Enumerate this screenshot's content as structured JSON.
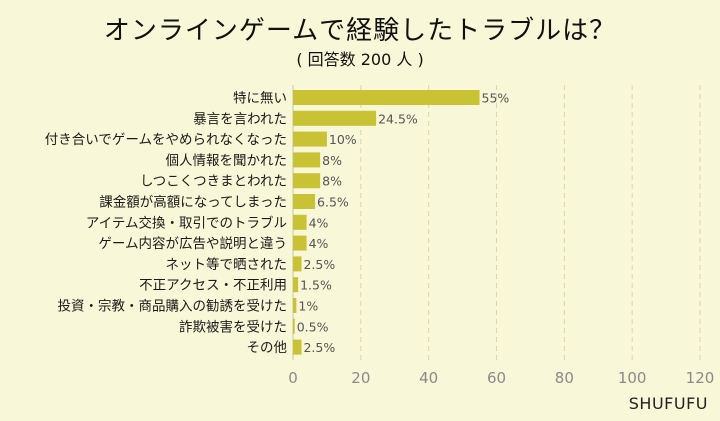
{
  "header": {
    "title": "オンラインゲームで経験したトラブルは？",
    "subtitle": "( 回答数 200 人 )"
  },
  "credit": "SHUFUFU",
  "colors": {
    "background": "#f8f7d7",
    "bar": "#c9c234",
    "grid": "#d9d6b0",
    "tick_text": "#8a8a8a",
    "label_text": "#1a1a1a"
  },
  "chart_data": {
    "type": "bar",
    "orientation": "horizontal",
    "title": "オンラインゲームで経験したトラブルは？",
    "subtitle": "( 回答数 200 人 )",
    "categories": [
      "特に無い",
      "暴言を言われた",
      "付き合いでゲームをやめられなくなった",
      "個人情報を聞かれた",
      "しつこくつきまとわれた",
      "課金額が高額になってしまった",
      "アイテム交換・取引でのトラブル",
      "ゲーム内容が広告や説明と違う",
      "ネット等で晒された",
      "不正アクセス・不正利用",
      "投資・宗教・商品購入の勧誘を受けた",
      "詐欺被害を受けた",
      "その他"
    ],
    "values": [
      55,
      24.5,
      10,
      8,
      8,
      6.5,
      4,
      4,
      2.5,
      1.5,
      1,
      0.5,
      2.5
    ],
    "data_labels": [
      "55%",
      "24.5%",
      "10%",
      "8%",
      "8%",
      "6.5%",
      "4%",
      "4%",
      "2.5%",
      "1.5%",
      "1%",
      "0.5%",
      "2.5%"
    ],
    "xlim": [
      0,
      120
    ],
    "xticks": [
      0,
      20,
      40,
      60,
      80,
      100,
      120
    ],
    "grid": true,
    "legend": "none"
  }
}
